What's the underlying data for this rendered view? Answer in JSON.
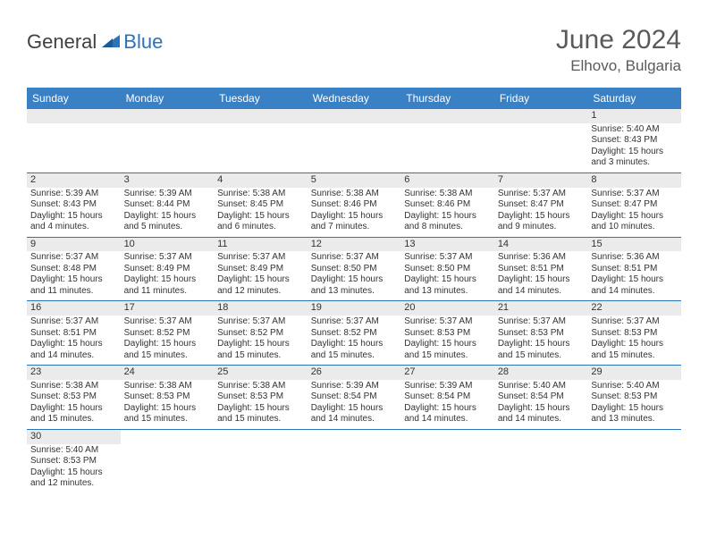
{
  "logo": {
    "text1": "General",
    "text2": "Blue",
    "color1": "#404040",
    "color2": "#2d73b8"
  },
  "title": "June 2024",
  "location": "Elhovo, Bulgaria",
  "colors": {
    "header_bg": "#3a80c4",
    "header_text": "#ffffff",
    "daybar_bg": "#ebebeb",
    "rule": "#2d73b8",
    "text": "#333333"
  },
  "day_headers": [
    "Sunday",
    "Monday",
    "Tuesday",
    "Wednesday",
    "Thursday",
    "Friday",
    "Saturday"
  ],
  "weeks": [
    [
      null,
      null,
      null,
      null,
      null,
      null,
      {
        "n": "1",
        "sr": "Sunrise: 5:40 AM",
        "ss": "Sunset: 8:43 PM",
        "dl": "Daylight: 15 hours and 3 minutes."
      }
    ],
    [
      {
        "n": "2",
        "sr": "Sunrise: 5:39 AM",
        "ss": "Sunset: 8:43 PM",
        "dl": "Daylight: 15 hours and 4 minutes."
      },
      {
        "n": "3",
        "sr": "Sunrise: 5:39 AM",
        "ss": "Sunset: 8:44 PM",
        "dl": "Daylight: 15 hours and 5 minutes."
      },
      {
        "n": "4",
        "sr": "Sunrise: 5:38 AM",
        "ss": "Sunset: 8:45 PM",
        "dl": "Daylight: 15 hours and 6 minutes."
      },
      {
        "n": "5",
        "sr": "Sunrise: 5:38 AM",
        "ss": "Sunset: 8:46 PM",
        "dl": "Daylight: 15 hours and 7 minutes."
      },
      {
        "n": "6",
        "sr": "Sunrise: 5:38 AM",
        "ss": "Sunset: 8:46 PM",
        "dl": "Daylight: 15 hours and 8 minutes."
      },
      {
        "n": "7",
        "sr": "Sunrise: 5:37 AM",
        "ss": "Sunset: 8:47 PM",
        "dl": "Daylight: 15 hours and 9 minutes."
      },
      {
        "n": "8",
        "sr": "Sunrise: 5:37 AM",
        "ss": "Sunset: 8:47 PM",
        "dl": "Daylight: 15 hours and 10 minutes."
      }
    ],
    [
      {
        "n": "9",
        "sr": "Sunrise: 5:37 AM",
        "ss": "Sunset: 8:48 PM",
        "dl": "Daylight: 15 hours and 11 minutes."
      },
      {
        "n": "10",
        "sr": "Sunrise: 5:37 AM",
        "ss": "Sunset: 8:49 PM",
        "dl": "Daylight: 15 hours and 11 minutes."
      },
      {
        "n": "11",
        "sr": "Sunrise: 5:37 AM",
        "ss": "Sunset: 8:49 PM",
        "dl": "Daylight: 15 hours and 12 minutes."
      },
      {
        "n": "12",
        "sr": "Sunrise: 5:37 AM",
        "ss": "Sunset: 8:50 PM",
        "dl": "Daylight: 15 hours and 13 minutes."
      },
      {
        "n": "13",
        "sr": "Sunrise: 5:37 AM",
        "ss": "Sunset: 8:50 PM",
        "dl": "Daylight: 15 hours and 13 minutes."
      },
      {
        "n": "14",
        "sr": "Sunrise: 5:36 AM",
        "ss": "Sunset: 8:51 PM",
        "dl": "Daylight: 15 hours and 14 minutes."
      },
      {
        "n": "15",
        "sr": "Sunrise: 5:36 AM",
        "ss": "Sunset: 8:51 PM",
        "dl": "Daylight: 15 hours and 14 minutes."
      }
    ],
    [
      {
        "n": "16",
        "sr": "Sunrise: 5:37 AM",
        "ss": "Sunset: 8:51 PM",
        "dl": "Daylight: 15 hours and 14 minutes."
      },
      {
        "n": "17",
        "sr": "Sunrise: 5:37 AM",
        "ss": "Sunset: 8:52 PM",
        "dl": "Daylight: 15 hours and 15 minutes."
      },
      {
        "n": "18",
        "sr": "Sunrise: 5:37 AM",
        "ss": "Sunset: 8:52 PM",
        "dl": "Daylight: 15 hours and 15 minutes."
      },
      {
        "n": "19",
        "sr": "Sunrise: 5:37 AM",
        "ss": "Sunset: 8:52 PM",
        "dl": "Daylight: 15 hours and 15 minutes."
      },
      {
        "n": "20",
        "sr": "Sunrise: 5:37 AM",
        "ss": "Sunset: 8:53 PM",
        "dl": "Daylight: 15 hours and 15 minutes."
      },
      {
        "n": "21",
        "sr": "Sunrise: 5:37 AM",
        "ss": "Sunset: 8:53 PM",
        "dl": "Daylight: 15 hours and 15 minutes."
      },
      {
        "n": "22",
        "sr": "Sunrise: 5:37 AM",
        "ss": "Sunset: 8:53 PM",
        "dl": "Daylight: 15 hours and 15 minutes."
      }
    ],
    [
      {
        "n": "23",
        "sr": "Sunrise: 5:38 AM",
        "ss": "Sunset: 8:53 PM",
        "dl": "Daylight: 15 hours and 15 minutes."
      },
      {
        "n": "24",
        "sr": "Sunrise: 5:38 AM",
        "ss": "Sunset: 8:53 PM",
        "dl": "Daylight: 15 hours and 15 minutes."
      },
      {
        "n": "25",
        "sr": "Sunrise: 5:38 AM",
        "ss": "Sunset: 8:53 PM",
        "dl": "Daylight: 15 hours and 15 minutes."
      },
      {
        "n": "26",
        "sr": "Sunrise: 5:39 AM",
        "ss": "Sunset: 8:54 PM",
        "dl": "Daylight: 15 hours and 14 minutes."
      },
      {
        "n": "27",
        "sr": "Sunrise: 5:39 AM",
        "ss": "Sunset: 8:54 PM",
        "dl": "Daylight: 15 hours and 14 minutes."
      },
      {
        "n": "28",
        "sr": "Sunrise: 5:40 AM",
        "ss": "Sunset: 8:54 PM",
        "dl": "Daylight: 15 hours and 14 minutes."
      },
      {
        "n": "29",
        "sr": "Sunrise: 5:40 AM",
        "ss": "Sunset: 8:53 PM",
        "dl": "Daylight: 15 hours and 13 minutes."
      }
    ],
    [
      {
        "n": "30",
        "sr": "Sunrise: 5:40 AM",
        "ss": "Sunset: 8:53 PM",
        "dl": "Daylight: 15 hours and 12 minutes."
      },
      null,
      null,
      null,
      null,
      null,
      null
    ]
  ]
}
